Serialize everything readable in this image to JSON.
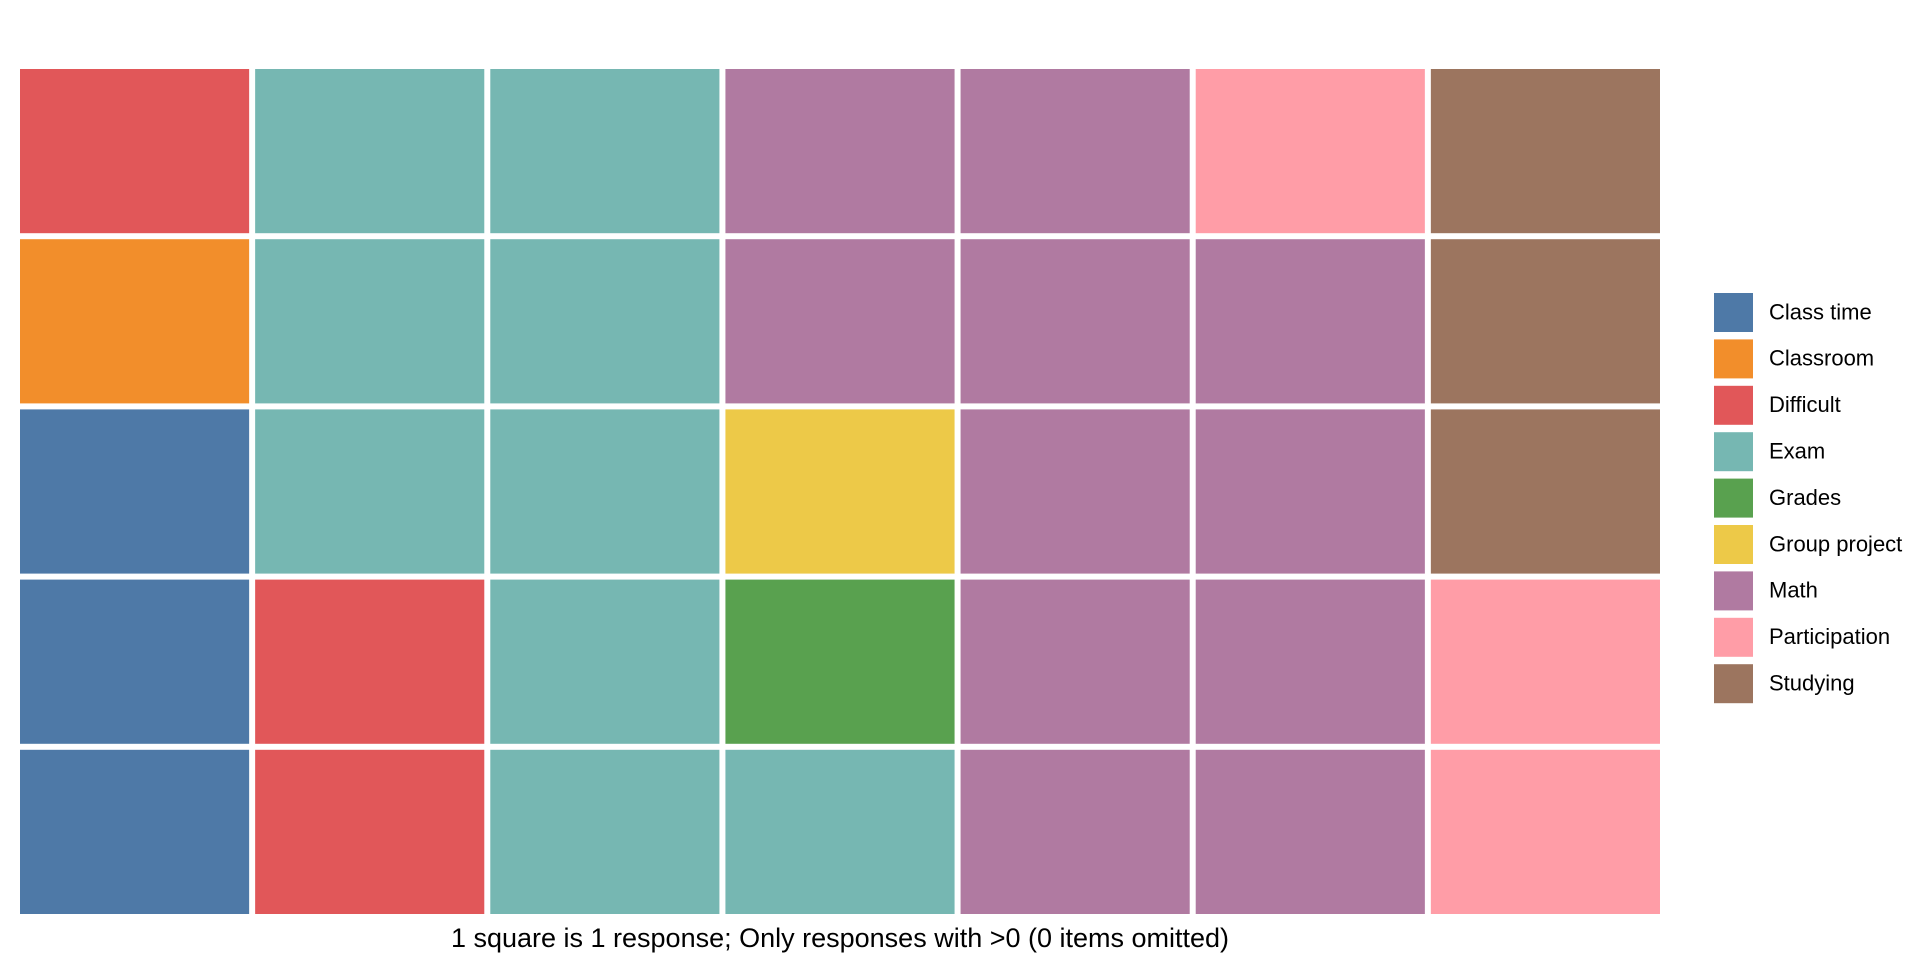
{
  "chart_data": {
    "type": "waffle",
    "categories": [
      "Class time",
      "Classroom",
      "Difficult",
      "Exam",
      "Grades",
      "Group project",
      "Math",
      "Participation",
      "Studying"
    ],
    "values": [
      3,
      1,
      3,
      9,
      1,
      1,
      11,
      3,
      3
    ],
    "colors": [
      "#4e79a7",
      "#f28e2b",
      "#e15759",
      "#76b7b2",
      "#59a14f",
      "#edc948",
      "#b07aa1",
      "#ff9da7",
      "#9c755f"
    ],
    "rows": 5,
    "caption": "1 square is 1 response; Only responses with >0 (0 items omitted)",
    "legend": "right"
  }
}
